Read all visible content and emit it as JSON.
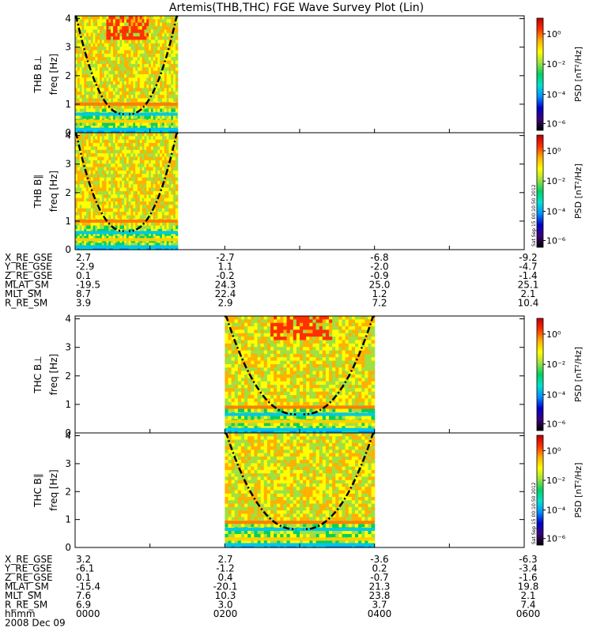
{
  "title": "Artemis(THB,THC) FGE Wave Survey Plot (Lin)",
  "colors": {
    "background": "#ffffff",
    "axes": "#000000",
    "curve": "#000000",
    "colormap": [
      "#000000",
      "#3c0078",
      "#0000c8",
      "#0090ff",
      "#00e0d0",
      "#00d060",
      "#a0e040",
      "#ffff00",
      "#ffb000",
      "#ff3000",
      "#c00000"
    ]
  },
  "chart_data": [
    {
      "type": "heatmap",
      "panel": "THB B⊥",
      "ylabel_top": "THB B⊥",
      "ylabel": "freq [Hz]",
      "yticks": [
        "0",
        "1",
        "2",
        "3",
        "4"
      ],
      "ylim": [
        0,
        4.1
      ],
      "data_xrange_hhmm": [
        "0000",
        "0130"
      ],
      "bands_hz": [
        0.12,
        0.4,
        0.65,
        1.0
      ],
      "colorbar": {
        "label": "PSD [nT²/Hz]",
        "scale": "log",
        "ticks": [
          "10⁰",
          "10⁻²",
          "10⁻⁴",
          "10⁻⁶"
        ]
      }
    },
    {
      "type": "heatmap",
      "panel": "THB B∥",
      "ylabel_top": "THB B∥",
      "ylabel": "freq [Hz]",
      "yticks": [
        "0",
        "1",
        "2",
        "3",
        "4"
      ],
      "ylim": [
        0,
        4.1
      ],
      "data_xrange_hhmm": [
        "0000",
        "0130"
      ],
      "bands_hz": [
        0.1,
        0.35,
        0.6,
        1.0
      ],
      "colorbar": {
        "label": "PSD [nT²/Hz]",
        "scale": "log",
        "ticks": [
          "10⁰",
          "10⁻²",
          "10⁻⁴",
          "10⁻⁶"
        ]
      },
      "stamp": "Sat Sep 15 00:10:50 2012"
    },
    {
      "type": "heatmap",
      "panel": "THC B⊥",
      "ylabel_top": "THC B⊥",
      "ylabel": "freq [Hz]",
      "yticks": [
        "0",
        "1",
        "2",
        "3",
        "4"
      ],
      "ylim": [
        0,
        4.1
      ],
      "data_xrange_hhmm": [
        "0200",
        "0400"
      ],
      "bands_hz": [
        0.12,
        0.4,
        0.65,
        0.9
      ],
      "colorbar": {
        "label": "PSD [nT²/Hz]",
        "scale": "log",
        "ticks": [
          "10⁰",
          "10⁻²",
          "10⁻⁴",
          "10⁻⁶"
        ]
      }
    },
    {
      "type": "heatmap",
      "panel": "THC B∥",
      "ylabel_top": "THC B∥",
      "ylabel": "freq [Hz]",
      "yticks": [
        "0",
        "1",
        "2",
        "3",
        "4"
      ],
      "ylim": [
        0,
        4.1
      ],
      "data_xrange_hhmm": [
        "0200",
        "0400"
      ],
      "bands_hz": [
        0.1,
        0.3,
        0.65,
        0.9
      ],
      "colorbar": {
        "label": "PSD [nT²/Hz]",
        "scale": "log",
        "ticks": [
          "10⁰",
          "10⁻²",
          "10⁻⁴",
          "10⁻⁶"
        ]
      },
      "stamp": "Sat Sep 15 00:10:50 2012"
    }
  ],
  "ephemeris": [
    {
      "rows": [
        {
          "label": "X_RE_GSE",
          "values": [
            "2.7",
            "-2.7",
            "-6.8",
            "-9.2"
          ]
        },
        {
          "label": "Y_RE_GSE",
          "values": [
            "-2.9",
            "1.1",
            "-2.0",
            "-4.7"
          ]
        },
        {
          "label": "Z_RE_GSE",
          "values": [
            "0.1",
            "-0.2",
            "-0.9",
            "-1.4"
          ]
        },
        {
          "label": "MLAT_SM",
          "values": [
            "-19.5",
            "24.3",
            "25.0",
            "25.1"
          ]
        },
        {
          "label": "MLT_SM",
          "values": [
            "8.7",
            "22.4",
            "1.2",
            "2.1"
          ]
        },
        {
          "label": "R_RE_SM",
          "values": [
            "3.9",
            "2.9",
            "7.2",
            "10.4"
          ]
        }
      ]
    },
    {
      "rows": [
        {
          "label": "X_RE_GSE",
          "values": [
            "3.2",
            "2.7",
            "-3.6",
            "-6.3"
          ]
        },
        {
          "label": "Y_RE_GSE",
          "values": [
            "-6.1",
            "-1.2",
            "0.2",
            "-3.4"
          ]
        },
        {
          "label": "Z_RE_GSE",
          "values": [
            "0.1",
            "0.4",
            "-0.7",
            "-1.6"
          ]
        },
        {
          "label": "MLAT_SM",
          "values": [
            "-15.4",
            "-20.1",
            "21.3",
            "19.8"
          ]
        },
        {
          "label": "MLT_SM",
          "values": [
            "7.6",
            "10.3",
            "23.8",
            "2.1"
          ]
        },
        {
          "label": "R_RE_SM",
          "values": [
            "6.9",
            "3.0",
            "3.7",
            "7.4"
          ]
        },
        {
          "label": "hhmm",
          "values": [
            "0000",
            "0200",
            "0400",
            "0600"
          ]
        }
      ],
      "date": "2008 Dec 09"
    }
  ]
}
